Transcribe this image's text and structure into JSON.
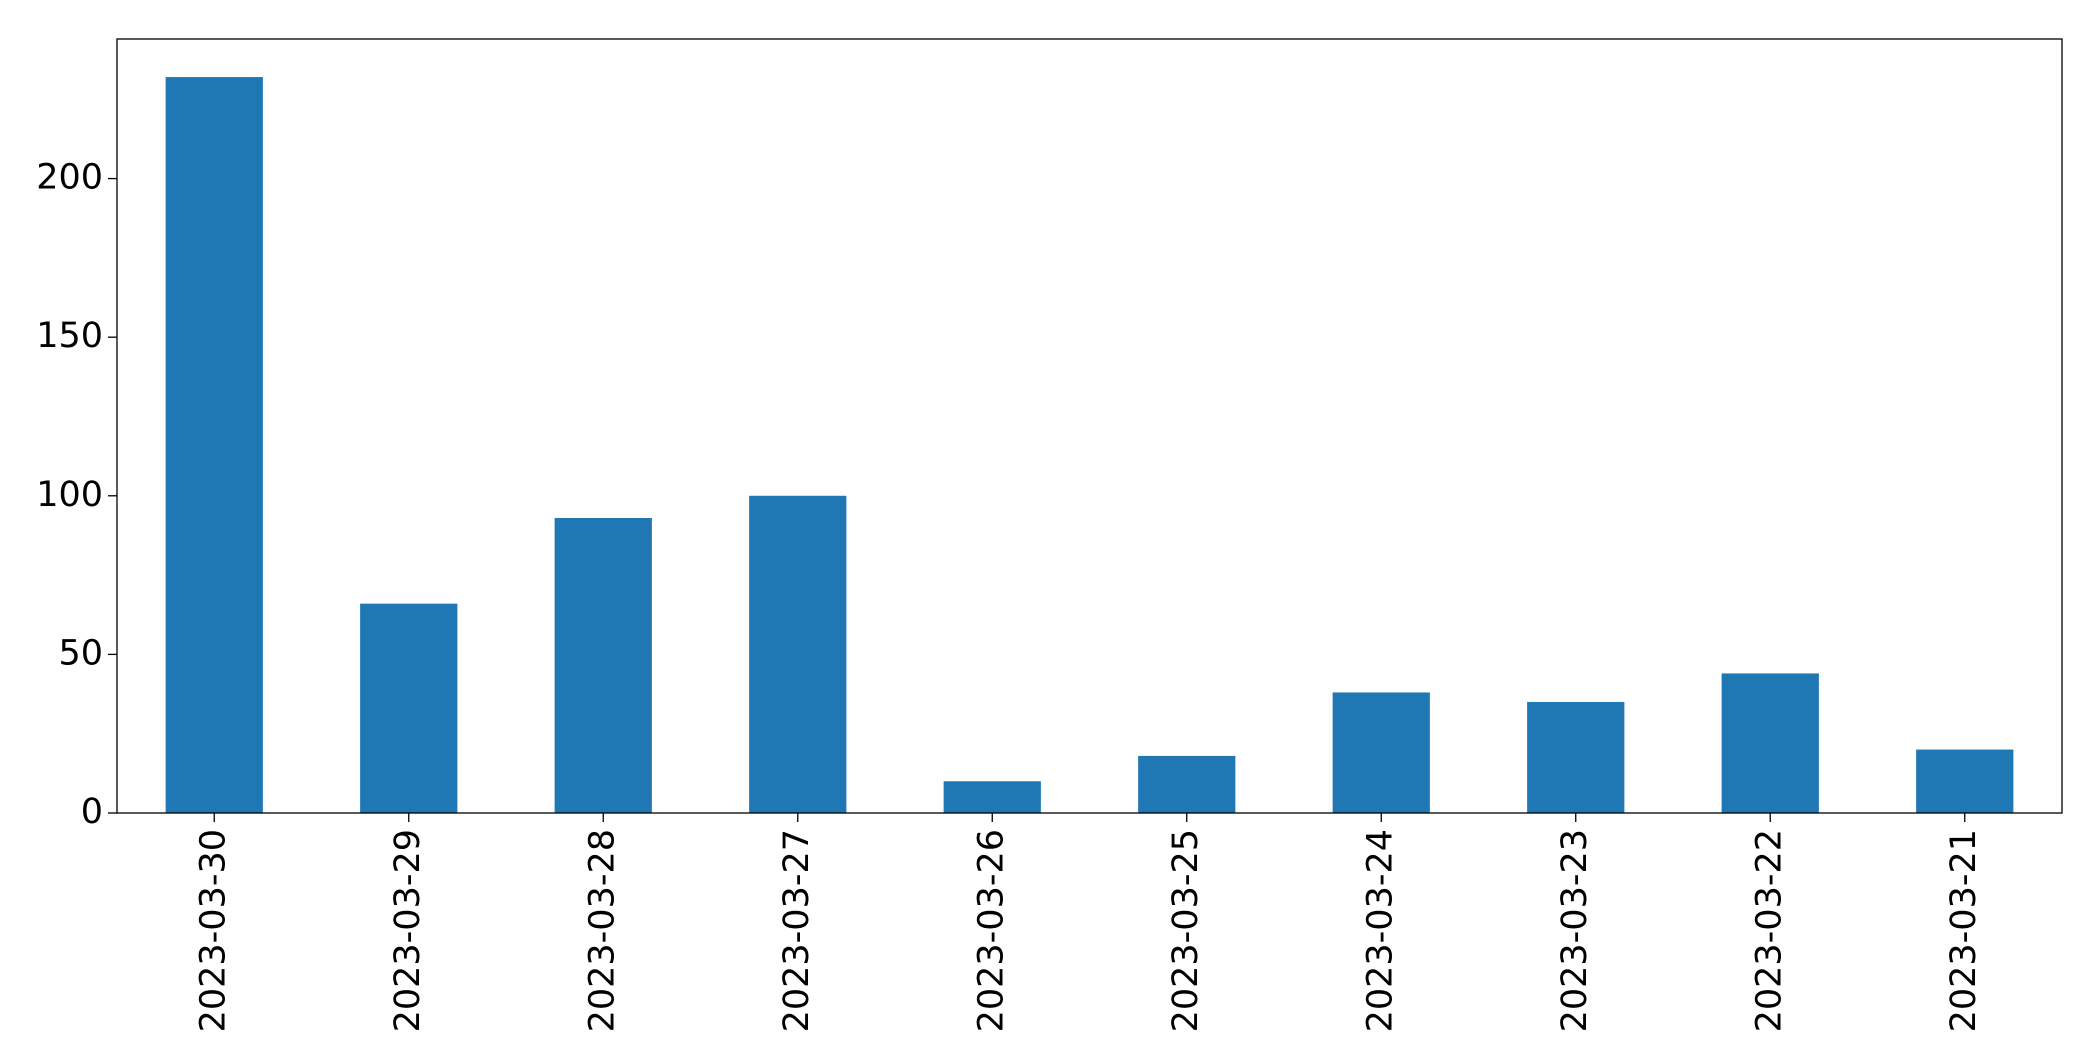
{
  "chart_data": {
    "type": "bar",
    "categories": [
      "2023-03-30",
      "2023-03-29",
      "2023-03-28",
      "2023-03-27",
      "2023-03-26",
      "2023-03-25",
      "2023-03-24",
      "2023-03-23",
      "2023-03-22",
      "2023-03-21"
    ],
    "values": [
      232,
      66,
      93,
      100,
      10,
      18,
      38,
      35,
      44,
      20
    ],
    "color": "#1f77b4",
    "ylim": [
      0,
      244
    ],
    "yticks": [
      0,
      50,
      100,
      150,
      200
    ],
    "grid": false
  }
}
